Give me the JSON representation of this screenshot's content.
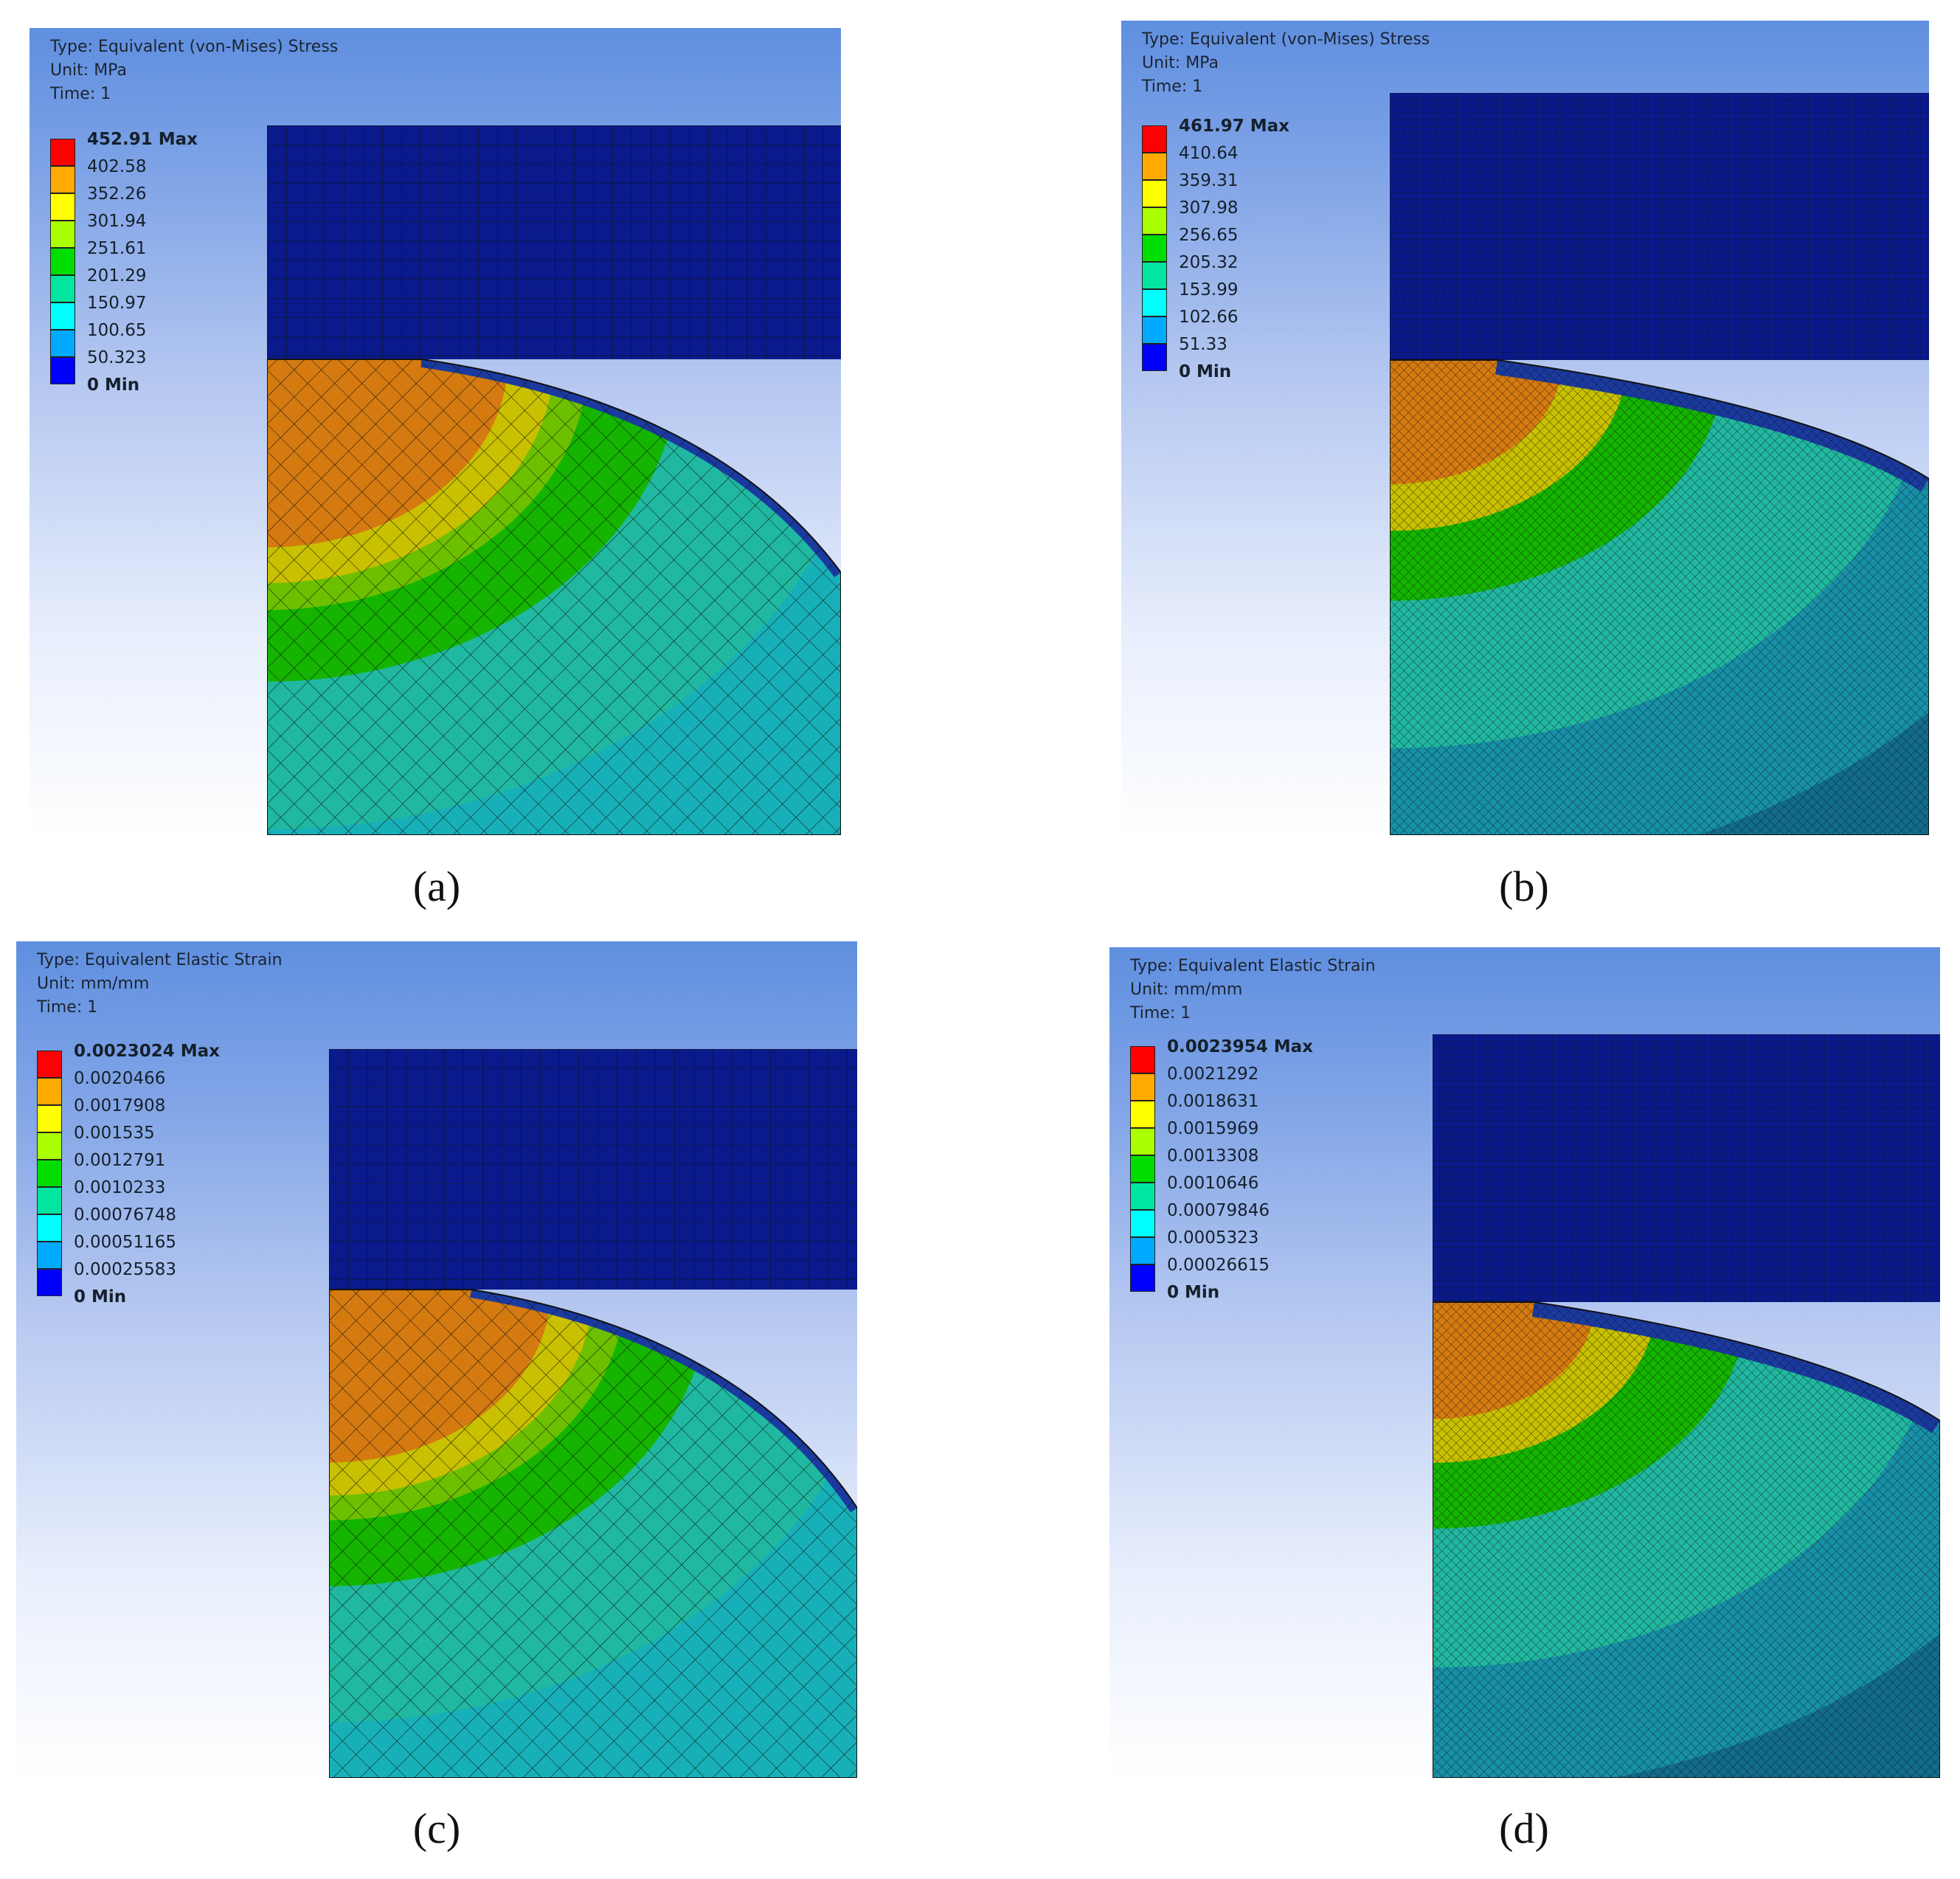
{
  "panels": [
    {
      "id": "a",
      "caption": "(a)",
      "info": {
        "type": "Type: Equivalent (von-Mises) Stress",
        "unit": "Unit: MPa",
        "time": "Time: 1"
      },
      "legend": [
        "452.91 Max",
        "402.58",
        "352.26",
        "301.94",
        "251.61",
        "201.29",
        "150.97",
        "100.65",
        "50.323",
        "0 Min"
      ],
      "mesh": "coarse"
    },
    {
      "id": "b",
      "caption": "(b)",
      "info": {
        "type": "Type: Equivalent (von-Mises) Stress",
        "unit": "Unit: MPa",
        "time": "Time: 1"
      },
      "legend": [
        "461.97 Max",
        "410.64",
        "359.31",
        "307.98",
        "256.65",
        "205.32",
        "153.99",
        "102.66",
        "51.33",
        "0 Min"
      ],
      "mesh": "fine"
    },
    {
      "id": "c",
      "caption": "(c)",
      "info": {
        "type": "Type: Equivalent Elastic Strain",
        "unit": "Unit: mm/mm",
        "time": "Time: 1"
      },
      "legend": [
        "0.0023024 Max",
        "0.0020466",
        "0.0017908",
        "0.001535",
        "0.0012791",
        "0.0010233",
        "0.00076748",
        "0.00051165",
        "0.00025583",
        "0 Min"
      ],
      "mesh": "coarse"
    },
    {
      "id": "d",
      "caption": "(d)",
      "info": {
        "type": "Type: Equivalent Elastic Strain",
        "unit": "Unit: mm/mm",
        "time": "Time: 1"
      },
      "legend": [
        "0.0023954 Max",
        "0.0021292",
        "0.0018631",
        "0.0015969",
        "0.0013308",
        "0.0010646",
        "0.00079846",
        "0.0005323",
        "0.00026615",
        "0 Min"
      ],
      "mesh": "fine"
    }
  ],
  "legend_colors": [
    "#ff0000",
    "#ffaa00",
    "#ffff00",
    "#aaff00",
    "#00dd00",
    "#00e6a0",
    "#00ffff",
    "#00aaff",
    "#0000ff"
  ],
  "contour_colors": {
    "block": "#0a1a8c",
    "orange": "#d47a10",
    "yellow": "#c8c000",
    "lime": "#6cc000",
    "green": "#14b400",
    "teal": "#20b8a0",
    "cyan": "#18b0b8",
    "darkteal": "#126c8c",
    "blue": "#1a3aa0"
  }
}
